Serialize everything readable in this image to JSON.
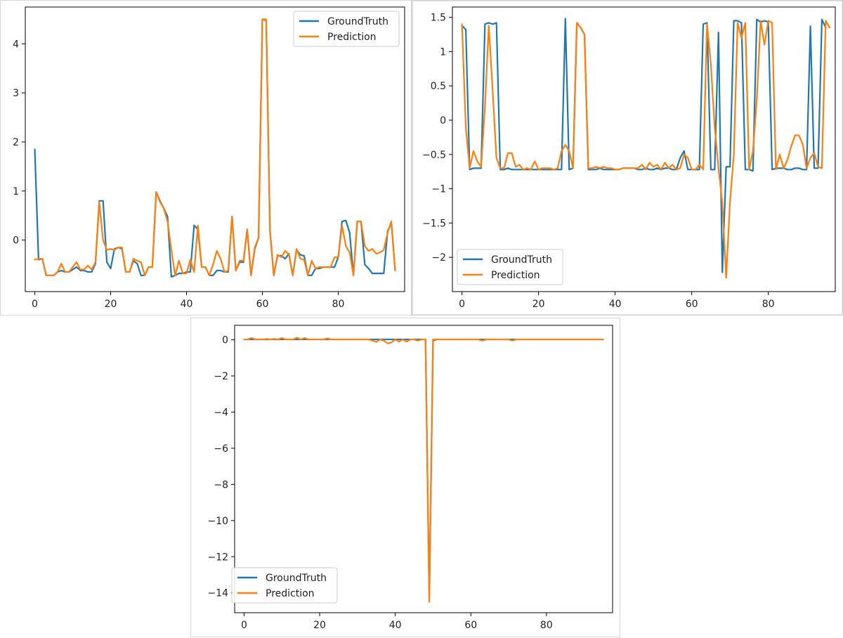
{
  "colors": {
    "ground_truth": "#1f77b4",
    "prediction": "#ff7f0e",
    "axis": "#000000"
  },
  "chart_data": [
    {
      "type": "line",
      "xlim": [
        -2.5,
        97.5
      ],
      "ylim": [
        -1.05,
        4.75
      ],
      "xticks": [
        0,
        20,
        40,
        60,
        80
      ],
      "yticks": [
        0,
        1,
        2,
        3,
        4
      ],
      "legend": "top-right",
      "series": [
        {
          "name": "GroundTruth",
          "x_start": 0,
          "values": [
            1.85,
            -0.4,
            -0.38,
            -0.72,
            -0.72,
            -0.72,
            -0.65,
            -0.62,
            -0.65,
            -0.65,
            -0.6,
            -0.55,
            -0.62,
            -0.62,
            -0.65,
            -0.65,
            -0.48,
            0.8,
            0.8,
            -0.45,
            -0.58,
            -0.18,
            -0.15,
            -0.18,
            -0.65,
            -0.65,
            -0.42,
            -0.48,
            -0.72,
            -0.72,
            -0.55,
            -0.55,
            0.98,
            0.8,
            0.65,
            0.48,
            -0.75,
            -0.72,
            -0.68,
            -0.68,
            -0.65,
            -0.65,
            0.3,
            0.22,
            -0.55,
            -0.55,
            -0.72,
            -0.72,
            -0.62,
            -0.62,
            -0.65,
            -0.65,
            0.48,
            -0.62,
            -0.45,
            -0.45,
            0.22,
            -0.72,
            -0.18,
            0.05,
            4.5,
            4.48,
            0.2,
            -0.72,
            -0.32,
            -0.32,
            -0.38,
            -0.28,
            -0.72,
            -0.2,
            -0.3,
            -0.32,
            -0.72,
            -0.72,
            -0.58,
            -0.58,
            -0.55,
            -0.55,
            -0.55,
            -0.55,
            -0.35,
            0.38,
            0.4,
            0.15,
            -0.72,
            0.38,
            0.38,
            -0.5,
            -0.58,
            -0.68,
            -0.68,
            -0.68,
            -0.68,
            0.18,
            0.35,
            -0.62
          ]
        },
        {
          "name": "Prediction",
          "x_start": 0,
          "values": [
            -0.4,
            -0.38,
            -0.38,
            -0.72,
            -0.72,
            -0.72,
            -0.65,
            -0.48,
            -0.65,
            -0.65,
            -0.55,
            -0.45,
            -0.6,
            -0.6,
            -0.52,
            -0.6,
            -0.45,
            0.78,
            0.0,
            -0.2,
            -0.18,
            -0.2,
            -0.15,
            -0.15,
            -0.65,
            -0.65,
            -0.38,
            -0.42,
            -0.45,
            -0.72,
            -0.55,
            -0.55,
            0.98,
            0.78,
            0.65,
            0.38,
            -0.2,
            -0.72,
            -0.42,
            -0.68,
            -0.68,
            -0.4,
            -0.65,
            0.3,
            -0.55,
            -0.55,
            -0.72,
            -0.5,
            -0.22,
            -0.38,
            -0.65,
            -0.62,
            0.48,
            -0.62,
            -0.42,
            -0.42,
            0.22,
            -0.72,
            -0.15,
            0.05,
            4.5,
            4.5,
            0.2,
            -0.72,
            -0.3,
            -0.35,
            -0.22,
            -0.3,
            -0.72,
            -0.18,
            -0.38,
            -0.4,
            -0.72,
            -0.42,
            -0.58,
            -0.55,
            -0.55,
            -0.55,
            -0.55,
            -0.35,
            -0.35,
            0.3,
            -0.12,
            -0.25,
            -0.72,
            0.38,
            0.38,
            -0.12,
            -0.22,
            -0.18,
            -0.28,
            -0.25,
            -0.2,
            0.15,
            0.38,
            -0.62
          ]
        }
      ]
    },
    {
      "type": "line",
      "xlim": [
        -2.5,
        97.5
      ],
      "ylim": [
        -2.5,
        1.65
      ],
      "xticks": [
        0,
        20,
        40,
        60,
        80
      ],
      "yticks": [
        1.5,
        1.0,
        0.5,
        0.0,
        -0.5,
        -1.0,
        -1.5,
        -2.0
      ],
      "legend": "bottom-left",
      "series": [
        {
          "name": "GroundTruth",
          "x_start": 0,
          "values": [
            1.38,
            1.32,
            -0.72,
            -0.7,
            -0.7,
            -0.7,
            1.4,
            1.42,
            1.4,
            1.42,
            -0.72,
            -0.72,
            -0.7,
            -0.72,
            -0.72,
            -0.72,
            -0.72,
            -0.72,
            -0.72,
            -0.72,
            -0.72,
            -0.72,
            -0.72,
            -0.72,
            -0.72,
            -0.72,
            -0.72,
            1.48,
            -0.72,
            -0.7,
            1.42,
            1.35,
            1.25,
            -0.72,
            -0.72,
            -0.72,
            -0.7,
            -0.72,
            -0.72,
            -0.72,
            -0.72,
            -0.72,
            -0.7,
            -0.7,
            -0.7,
            -0.7,
            -0.72,
            -0.72,
            -0.7,
            -0.72,
            -0.72,
            -0.7,
            -0.72,
            -0.7,
            -0.7,
            -0.72,
            -0.72,
            -0.55,
            -0.45,
            -0.72,
            -0.72,
            -0.72,
            -0.72,
            1.4,
            1.42,
            -0.72,
            -0.72,
            1.28,
            -2.22,
            -0.68,
            -0.68,
            1.45,
            1.45,
            1.42,
            -0.72,
            -0.72,
            -0.74,
            1.47,
            1.43,
            1.45,
            1.43,
            -0.72,
            -0.7,
            -0.7,
            -0.7,
            -0.72,
            -0.72,
            -0.7,
            -0.7,
            -0.72,
            -0.72,
            1.37,
            -0.7,
            -0.7,
            1.47,
            1.35
          ]
        },
        {
          "name": "Prediction",
          "x_start": 0,
          "values": [
            1.4,
            -0.1,
            -0.7,
            -0.45,
            -0.6,
            -0.68,
            0.2,
            1.38,
            0.45,
            -0.55,
            -0.7,
            -0.7,
            -0.48,
            -0.48,
            -0.68,
            -0.65,
            -0.72,
            -0.7,
            -0.72,
            -0.6,
            -0.72,
            -0.7,
            -0.7,
            -0.7,
            -0.72,
            -0.7,
            -0.45,
            -0.36,
            -0.45,
            -0.7,
            1.42,
            1.35,
            1.25,
            -0.7,
            -0.7,
            -0.68,
            -0.7,
            -0.68,
            -0.7,
            -0.7,
            -0.72,
            -0.72,
            -0.7,
            -0.7,
            -0.7,
            -0.7,
            -0.7,
            -0.65,
            -0.72,
            -0.62,
            -0.68,
            -0.65,
            -0.72,
            -0.62,
            -0.7,
            -0.65,
            -0.72,
            -0.7,
            -0.5,
            -0.55,
            -0.72,
            -0.72,
            -0.65,
            -0.72,
            1.4,
            0.82,
            -0.1,
            -0.7,
            -1.2,
            -2.3,
            -1.2,
            -0.5,
            1.42,
            1.2,
            1.42,
            -0.72,
            -0.45,
            0.3,
            1.45,
            1.1,
            1.45,
            1.42,
            -0.72,
            -0.5,
            -0.7,
            -0.58,
            -0.38,
            -0.22,
            -0.22,
            -0.35,
            -0.7,
            -0.55,
            -0.48,
            -0.68,
            -0.7,
            1.45,
            1.35
          ]
        }
      ]
    },
    {
      "type": "line",
      "xlim": [
        -2.5,
        97.5
      ],
      "ylim": [
        -15.1,
        0.8
      ],
      "xticks": [
        0,
        20,
        40,
        60,
        80
      ],
      "yticks": [
        0,
        -2,
        -4,
        -6,
        -8,
        -10,
        -12,
        -14
      ],
      "legend": "bottom-left",
      "series": [
        {
          "name": "GroundTruth",
          "x_start": 0,
          "values": [
            0.02,
            0.02,
            0.02,
            0.02,
            0.02,
            0.02,
            0.02,
            0.02,
            0.02,
            0.02,
            0.02,
            0.02,
            0.02,
            0.02,
            0.02,
            0.02,
            0.02,
            0.02,
            0.02,
            0.02,
            0.02,
            0.02,
            0.02,
            0.02,
            0.02,
            0.02,
            0.02,
            0.02,
            0.02,
            0.02,
            0.02,
            0.02,
            0.02,
            0.02,
            0.02,
            0.02,
            0.02,
            0.02,
            0.02,
            0.02,
            0.02,
            0.02,
            0.02,
            0.02,
            0.02,
            0.02,
            0.02,
            0.02,
            0.02,
            -14.3,
            -0.05,
            0.02,
            0.02,
            0.02,
            0.02,
            0.02,
            0.02,
            0.02,
            0.02,
            0.02,
            0.02,
            0.02,
            0.02,
            0.02,
            0.02,
            0.02,
            0.02,
            0.02,
            0.02,
            0.02,
            0.02,
            0.02,
            0.02,
            0.02,
            0.02,
            0.02,
            0.02,
            0.02,
            0.02,
            0.02,
            0.02,
            0.02,
            0.02,
            0.02,
            0.02,
            0.02,
            0.02,
            0.02,
            0.02,
            0.02,
            0.02,
            0.02,
            0.02,
            0.02,
            0.02,
            0.02
          ]
        },
        {
          "name": "Prediction",
          "x_start": 0,
          "values": [
            0.02,
            0.02,
            0.1,
            0.02,
            0.02,
            0.02,
            0.05,
            0.02,
            0.05,
            0.02,
            0.1,
            0.02,
            0.02,
            0.02,
            0.12,
            0.02,
            0.1,
            0.02,
            0.02,
            0.02,
            0.02,
            0.02,
            0.08,
            0.02,
            0.02,
            0.02,
            0.02,
            0.02,
            0.02,
            0.02,
            0.02,
            0.02,
            0.02,
            0.02,
            -0.05,
            -0.12,
            0.02,
            -0.05,
            -0.2,
            -0.15,
            0.02,
            -0.1,
            0.02,
            -0.1,
            0.02,
            0.02,
            -0.05,
            0.02,
            0.02,
            -14.5,
            0.02,
            0.02,
            0.02,
            0.02,
            0.02,
            0.02,
            0.02,
            0.02,
            0.02,
            0.02,
            0.02,
            0.02,
            0.02,
            -0.05,
            0.02,
            0.02,
            0.02,
            0.02,
            0.02,
            0.02,
            0.02,
            -0.05,
            0.02,
            0.02,
            0.02,
            0.02,
            0.02,
            0.02,
            0.02,
            0.02,
            0.02,
            0.02,
            0.02,
            0.02,
            0.02,
            0.02,
            0.02,
            0.02,
            0.02,
            0.02,
            0.02,
            0.02,
            0.02,
            0.02,
            0.02,
            0.02
          ]
        }
      ]
    }
  ]
}
